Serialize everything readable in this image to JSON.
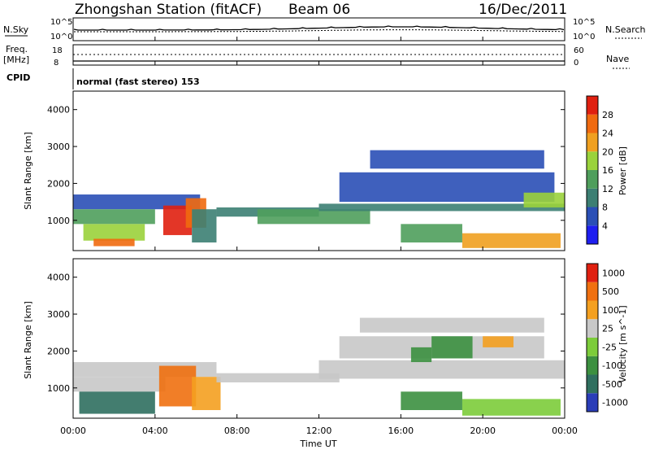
{
  "header": {
    "station": "Zhongshan Station (fitACF)",
    "beam": "Beam 06",
    "date": "16/Dec/2011"
  },
  "top_panels": {
    "nsky_label": "N.Sky",
    "nsky_ticks": [
      "10^5",
      "10^0"
    ],
    "nsearch_label": "N.Search",
    "nsearch_ticks": [
      "10^5",
      "10^0"
    ],
    "freq_label_1": "Freq.",
    "freq_label_2": "[MHz]",
    "freq_ticks": [
      "18",
      "8"
    ],
    "nave_label": "Nave",
    "nave_ticks": [
      "60",
      "0"
    ],
    "cpid_label": "CPID",
    "cpid_text": "normal (fast stereo) 153"
  },
  "colors": {
    "power_scale": [
      "#1e1ef0",
      "#2a4fb6",
      "#3c7f73",
      "#4f9e5c",
      "#9ad23b",
      "#f0a020",
      "#f06a10",
      "#e02010"
    ],
    "velocity_scale": [
      "#2a3db8",
      "#2f6f5f",
      "#3c9040",
      "#7ccc3a",
      "#c8c8c8",
      "#f4a020",
      "#f07010",
      "#e02010"
    ],
    "ground_scatter": "#c8c8c8"
  },
  "chart_data": [
    {
      "type": "heatmap",
      "title": "",
      "quantity": "Power",
      "ylabel": "Slant Range [km]",
      "colorbar_label": "Power [dB]",
      "colorbar_ticks": [
        "28",
        "24",
        "20",
        "16",
        "12",
        "8",
        "4"
      ],
      "ylim": [
        180,
        4500
      ],
      "yticks": [
        "4000",
        "3000",
        "2000",
        "1000"
      ],
      "xlim": [
        "00:00",
        "24:00"
      ],
      "grid": false,
      "regions": [
        {
          "t0": 0.0,
          "t1": 6.2,
          "r0": 1300,
          "r1": 1700,
          "level": 1
        },
        {
          "t0": 0.0,
          "t1": 4.0,
          "r0": 900,
          "r1": 1300,
          "level": 3
        },
        {
          "t0": 0.5,
          "t1": 3.5,
          "r0": 450,
          "r1": 900,
          "level": 4
        },
        {
          "t0": 1.0,
          "t1": 3.0,
          "r0": 300,
          "r1": 500,
          "level": 6
        },
        {
          "t0": 4.4,
          "t1": 5.8,
          "r0": 600,
          "r1": 1400,
          "level": 7
        },
        {
          "t0": 5.5,
          "t1": 6.5,
          "r0": 800,
          "r1": 1600,
          "level": 6
        },
        {
          "t0": 5.8,
          "t1": 7.0,
          "r0": 400,
          "r1": 1300,
          "level": 2
        },
        {
          "t0": 7.0,
          "t1": 12.0,
          "r0": 1100,
          "r1": 1350,
          "level": 2
        },
        {
          "t0": 9.0,
          "t1": 14.5,
          "r0": 900,
          "r1": 1300,
          "level": 3
        },
        {
          "t0": 12.0,
          "t1": 24.0,
          "r0": 1250,
          "r1": 1450,
          "level": 2
        },
        {
          "t0": 13.0,
          "t1": 23.5,
          "r0": 1500,
          "r1": 2300,
          "level": 1
        },
        {
          "t0": 14.5,
          "t1": 23.0,
          "r0": 2400,
          "r1": 2900,
          "level": 1
        },
        {
          "t0": 16.0,
          "t1": 19.0,
          "r0": 400,
          "r1": 900,
          "level": 3
        },
        {
          "t0": 19.0,
          "t1": 23.8,
          "r0": 250,
          "r1": 650,
          "level": 5
        },
        {
          "t0": 22.0,
          "t1": 24.0,
          "r0": 1350,
          "r1": 1750,
          "level": 4
        }
      ]
    },
    {
      "type": "heatmap",
      "title": "",
      "quantity": "Velocity",
      "ylabel": "Slant Range [km]",
      "colorbar_label": "Velocity [m s^-1]",
      "colorbar_ticks": [
        "1000",
        "500",
        "100",
        "25",
        "-25",
        "-100",
        "-500",
        "-1000"
      ],
      "ylim": [
        180,
        4500
      ],
      "yticks": [
        "4000",
        "3000",
        "2000",
        "1000"
      ],
      "xlim": [
        "00:00",
        "24:00"
      ],
      "xticks": [
        "00:00",
        "04:00",
        "08:00",
        "12:00",
        "16:00",
        "20:00",
        "00:00"
      ],
      "xlabel": "Time UT",
      "grid": false,
      "regions": [
        {
          "t0": 0.0,
          "t1": 7.0,
          "r0": 1300,
          "r1": 1700,
          "level": 4
        },
        {
          "t0": 0.0,
          "t1": 4.5,
          "r0": 900,
          "r1": 1300,
          "level": 4
        },
        {
          "t0": 0.3,
          "t1": 4.0,
          "r0": 300,
          "r1": 900,
          "level": 1
        },
        {
          "t0": 4.2,
          "t1": 6.0,
          "r0": 500,
          "r1": 1600,
          "level": 6
        },
        {
          "t0": 5.8,
          "t1": 7.2,
          "r0": 400,
          "r1": 1300,
          "level": 5
        },
        {
          "t0": 7.0,
          "t1": 13.0,
          "r0": 1150,
          "r1": 1400,
          "level": 4
        },
        {
          "t0": 12.0,
          "t1": 24.0,
          "r0": 1250,
          "r1": 1750,
          "level": 4
        },
        {
          "t0": 13.0,
          "t1": 23.0,
          "r0": 1800,
          "r1": 2400,
          "level": 4
        },
        {
          "t0": 14.0,
          "t1": 23.0,
          "r0": 2500,
          "r1": 2900,
          "level": 4
        },
        {
          "t0": 16.5,
          "t1": 17.5,
          "r0": 1700,
          "r1": 2100,
          "level": 2
        },
        {
          "t0": 17.5,
          "t1": 19.5,
          "r0": 1800,
          "r1": 2400,
          "level": 2
        },
        {
          "t0": 16.0,
          "t1": 19.0,
          "r0": 400,
          "r1": 900,
          "level": 2
        },
        {
          "t0": 19.0,
          "t1": 23.8,
          "r0": 250,
          "r1": 700,
          "level": 3
        },
        {
          "t0": 20.0,
          "t1": 21.5,
          "r0": 2100,
          "r1": 2400,
          "level": 5
        }
      ]
    }
  ]
}
